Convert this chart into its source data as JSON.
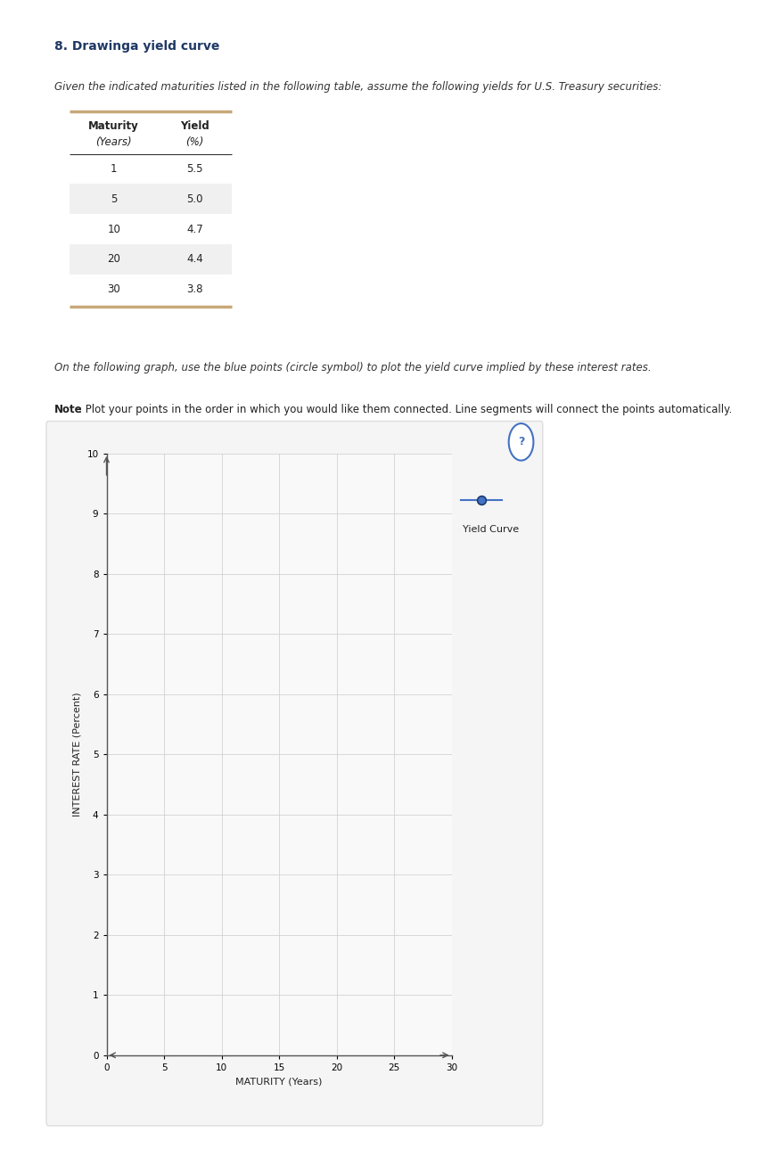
{
  "title_number": "8. Drawinga yield curve",
  "title_color": "#1f3864",
  "intro_text": "Given the indicated maturities listed in the following table, assume the following yields for U.S. Treasury securities:",
  "maturities": [
    1,
    5,
    10,
    20,
    30
  ],
  "yields": [
    5.5,
    5.0,
    4.7,
    4.4,
    3.8
  ],
  "table_row_colors": [
    "#ffffff",
    "#f0f0f0",
    "#ffffff",
    "#f0f0f0",
    "#ffffff"
  ],
  "instruction_text": "On the following graph, use the blue points (circle symbol) to plot the yield curve implied by these interest rates.",
  "note_bold": "Note",
  "note_rest": ": Plot your points in the order in which you would like them connected. Line segments will connect the points automatically.",
  "xlabel": "MATURITY (Years)",
  "ylabel": "INTEREST RATE (Percent)",
  "xlim": [
    0,
    30
  ],
  "ylim": [
    0,
    10
  ],
  "xticks": [
    0,
    5,
    10,
    15,
    20,
    25,
    30
  ],
  "yticks": [
    0,
    1,
    2,
    3,
    4,
    5,
    6,
    7,
    8,
    9,
    10
  ],
  "grid_color": "#cccccc",
  "plot_bg_color": "#f9f9f9",
  "line_color": "#4472c4",
  "point_color": "#4472c4",
  "point_edge_color": "#1a3a6e",
  "legend_label": "Yield Curve",
  "question_mark_color": "#4472c4",
  "page_bg": "#ffffff",
  "table_top_line_color": "#c8a87a",
  "table_bottom_line_color": "#c8a87a",
  "table_header_line_color": "#333333",
  "frame_bg": "#f5f5f5",
  "frame_edge": "#dddddd"
}
